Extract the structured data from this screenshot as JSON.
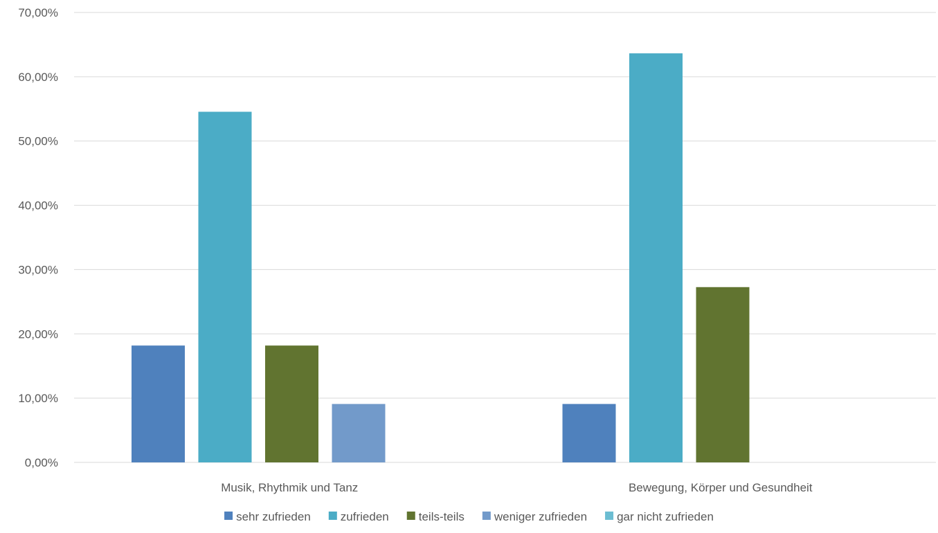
{
  "chart_data": {
    "type": "bar",
    "title": "",
    "xlabel": "",
    "ylabel": "",
    "categories": [
      "Musik, Rhythmik und Tanz",
      "Bewegung, Körper und Gesundheit"
    ],
    "series": [
      {
        "name": "sehr zufrieden",
        "color": "#4f81bd",
        "values": [
          18.18,
          9.09
        ]
      },
      {
        "name": "zufrieden",
        "color": "#4bacc6",
        "values": [
          54.55,
          63.64
        ]
      },
      {
        "name": "teils-teils",
        "color": "#617430",
        "values": [
          18.18,
          27.27
        ]
      },
      {
        "name": "weniger zufrieden",
        "color": "#729aca",
        "values": [
          9.09,
          0
        ]
      },
      {
        "name": "gar nicht zufrieden",
        "color": "#6cbdd2",
        "values": [
          0,
          0
        ]
      }
    ],
    "ylim": [
      0,
      70
    ],
    "y_ticks": [
      "0,00%",
      "10,00%",
      "20,00%",
      "30,00%",
      "40,00%",
      "50,00%",
      "60,00%",
      "70,00%"
    ],
    "grid": true,
    "legend_position": "bottom"
  }
}
